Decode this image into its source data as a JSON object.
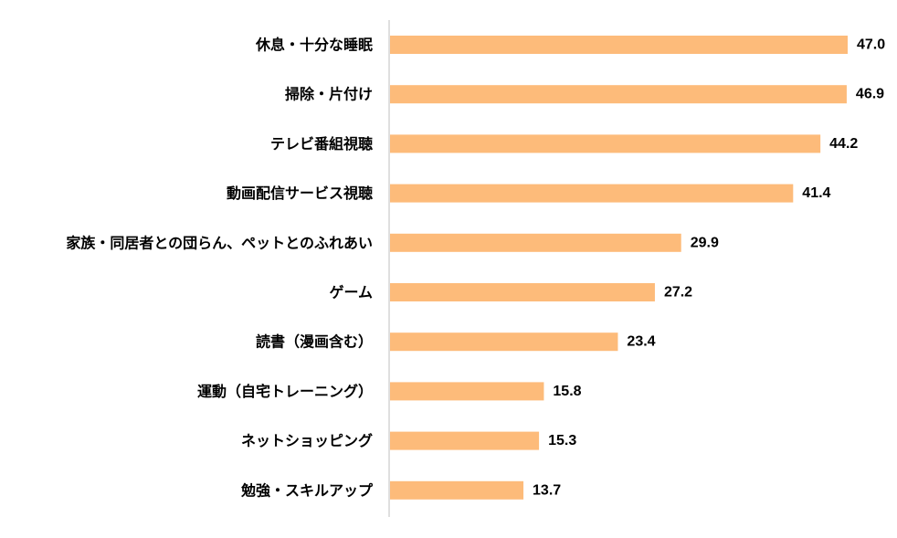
{
  "chart_data": {
    "type": "bar",
    "orientation": "horizontal",
    "categories": [
      "休息・十分な睡眠",
      "掃除・片付け",
      "テレビ番組視聴",
      "動画配信サービス視聴",
      "家族・同居者との団らん、ペットとのふれあい",
      "ゲーム",
      "読書（漫画含む）",
      "運動（自宅トレーニング）",
      "ネットショッピング",
      "勉強・スキルアップ"
    ],
    "values": [
      47.0,
      46.9,
      44.2,
      41.4,
      29.9,
      27.2,
      23.4,
      15.8,
      15.3,
      13.7
    ],
    "value_labels": [
      "47.0",
      "46.9",
      "44.2",
      "41.4",
      "29.9",
      "27.2",
      "23.4",
      "15.8",
      "15.3",
      "13.7"
    ],
    "xlim": [
      0,
      50
    ],
    "grid": false,
    "legend": false,
    "colors": {
      "bar": "#FDBB7A",
      "axis": "#BFBFBF",
      "text": "#000000"
    }
  }
}
